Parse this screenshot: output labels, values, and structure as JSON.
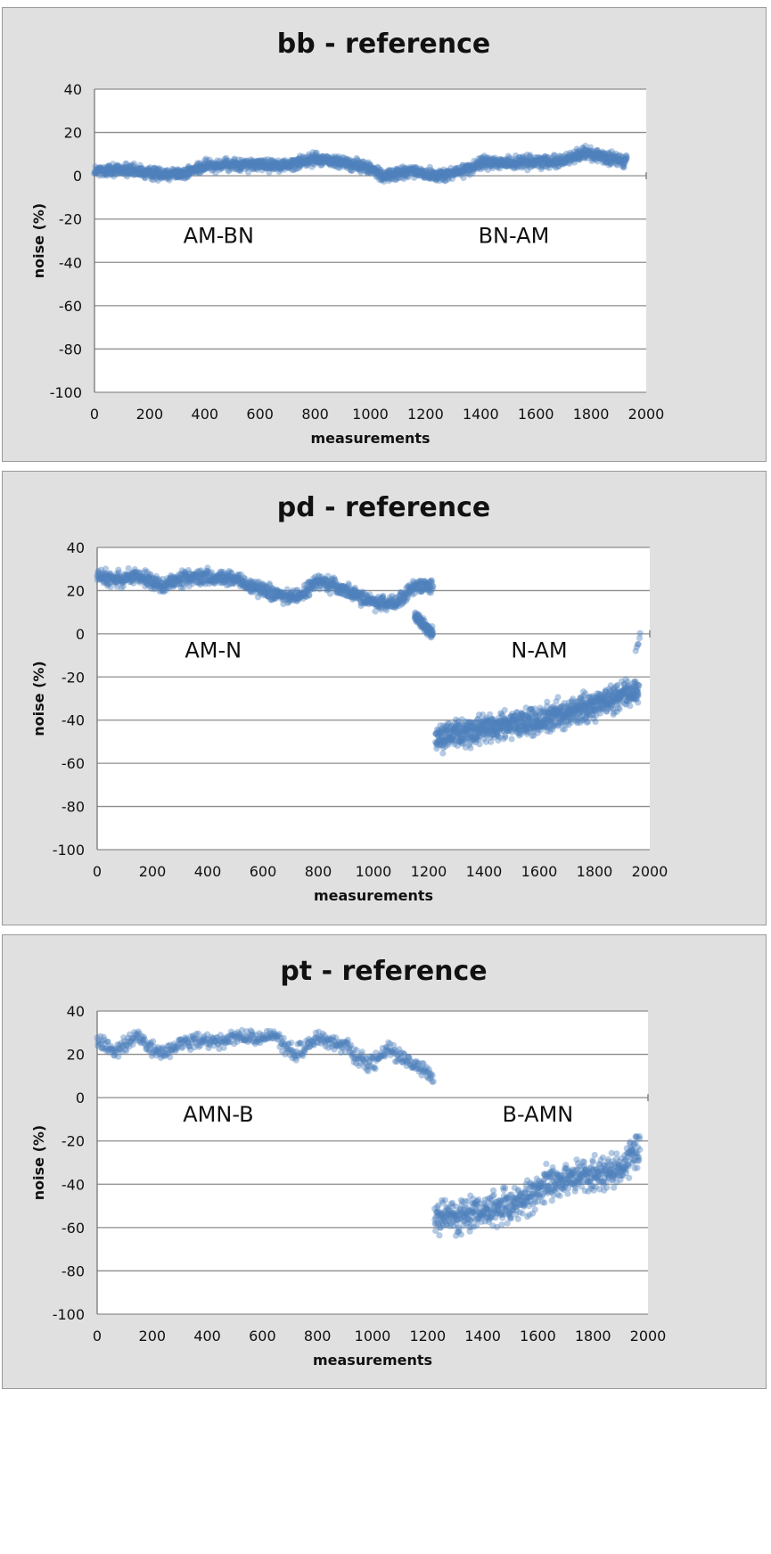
{
  "chart_data": [
    {
      "type": "scatter",
      "title": "bb - reference",
      "xlabel": "measurements",
      "ylabel": "noise (%)",
      "xlim": [
        0,
        2000
      ],
      "ylim": [
        -100,
        40
      ],
      "xticks": [
        0,
        200,
        400,
        600,
        800,
        1000,
        1200,
        1400,
        1600,
        1800,
        2000
      ],
      "yticks": [
        40,
        20,
        0,
        -20,
        -40,
        -60,
        -80,
        -100
      ],
      "grid": true,
      "annotations": [
        {
          "text": "AM-BN",
          "x": 450,
          "y": -31
        },
        {
          "text": "BN-AM",
          "x": 1520,
          "y": -31
        }
      ],
      "series": [
        {
          "color": "#4f81bd",
          "segments": [
            {
              "x_start": 0,
              "x_end": 1930,
              "count": 1930,
              "trend": [
                [
                  0,
                  2
                ],
                [
                  100,
                  3
                ],
                [
                  200,
                  1
                ],
                [
                  320,
                  1
                ],
                [
                  420,
                  5
                ],
                [
                  550,
                  5
                ],
                [
                  700,
                  5
                ],
                [
                  800,
                  8
                ],
                [
                  900,
                  6
                ],
                [
                  980,
                  4
                ],
                [
                  1050,
                  0
                ],
                [
                  1150,
                  2
                ],
                [
                  1250,
                  0
                ],
                [
                  1330,
                  2
                ],
                [
                  1400,
                  6
                ],
                [
                  1550,
                  6
                ],
                [
                  1700,
                  7
                ],
                [
                  1780,
                  11
                ],
                [
                  1850,
                  8
                ],
                [
                  1930,
                  7
                ]
              ],
              "spread": 4
            }
          ]
        }
      ]
    },
    {
      "type": "scatter",
      "title": "pd - reference",
      "xlabel": "measurements",
      "ylabel": "noise (%)",
      "xlim": [
        0,
        2000
      ],
      "ylim": [
        -100,
        40
      ],
      "xticks": [
        0,
        200,
        400,
        600,
        800,
        1000,
        1200,
        1400,
        1600,
        1800,
        2000
      ],
      "yticks": [
        40,
        20,
        0,
        -20,
        -40,
        -60,
        -80,
        -100
      ],
      "grid": true,
      "annotations": [
        {
          "text": "AM-N",
          "x": 420,
          "y": -11
        },
        {
          "text": "N-AM",
          "x": 1600,
          "y": -11
        }
      ],
      "series": [
        {
          "color": "#4f81bd",
          "segments": [
            {
              "x_start": 0,
              "x_end": 1215,
              "count": 1100,
              "trend": [
                [
                  0,
                  27
                ],
                [
                  60,
                  25
                ],
                [
                  150,
                  27
                ],
                [
                  230,
                  22
                ],
                [
                  300,
                  25
                ],
                [
                  380,
                  26
                ],
                [
                  480,
                  26
                ],
                [
                  600,
                  20
                ],
                [
                  720,
                  16
                ],
                [
                  800,
                  25
                ],
                [
                  900,
                  20
                ],
                [
                  1000,
                  15
                ],
                [
                  1080,
                  14
                ],
                [
                  1150,
                  22
                ],
                [
                  1215,
                  22
                ]
              ],
              "spread": 5
            },
            {
              "x_start": 1150,
              "x_end": 1215,
              "count": 110,
              "trend": [
                [
                  1150,
                  8
                ],
                [
                  1215,
                  0
                ]
              ],
              "spread": 4
            },
            {
              "x_start": 1225,
              "x_end": 1960,
              "count": 1000,
              "trend": [
                [
                  1225,
                  -48
                ],
                [
                  1400,
                  -44
                ],
                [
                  1600,
                  -40
                ],
                [
                  1800,
                  -33
                ],
                [
                  1960,
                  -26
                ]
              ],
              "spread": 9
            },
            {
              "x_start": 1950,
              "x_end": 1965,
              "count": 6,
              "trend": [
                [
                  1950,
                  -8
                ],
                [
                  1965,
                  -1
                ]
              ],
              "spread": 3
            }
          ]
        }
      ]
    },
    {
      "type": "scatter",
      "title": "pt - reference",
      "xlabel": "measurements",
      "ylabel": "noise (%)",
      "xlim": [
        0,
        2000
      ],
      "ylim": [
        -100,
        40
      ],
      "xticks": [
        0,
        200,
        400,
        600,
        800,
        1000,
        1200,
        1400,
        1600,
        1800,
        2000
      ],
      "yticks": [
        40,
        20,
        0,
        -20,
        -40,
        -60,
        -80,
        -100
      ],
      "grid": true,
      "annotations": [
        {
          "text": "AMN-B",
          "x": 440,
          "y": -11
        },
        {
          "text": "B-AMN",
          "x": 1600,
          "y": -11
        }
      ],
      "series": [
        {
          "color": "#4f81bd",
          "segments": [
            {
              "x_start": 0,
              "x_end": 1220,
              "count": 560,
              "trend": [
                [
                  0,
                  27
                ],
                [
                  60,
                  22
                ],
                [
                  150,
                  28
                ],
                [
                  230,
                  20
                ],
                [
                  300,
                  25
                ],
                [
                  450,
                  26
                ],
                [
                  500,
                  28
                ],
                [
                  650,
                  28
                ],
                [
                  720,
                  20
                ],
                [
                  800,
                  27
                ],
                [
                  900,
                  24
                ],
                [
                  980,
                  15
                ],
                [
                  1060,
                  22
                ],
                [
                  1150,
                  16
                ],
                [
                  1220,
                  10
                ]
              ],
              "spread": 5
            },
            {
              "x_start": 1225,
              "x_end": 1970,
              "count": 700,
              "trend": [
                [
                  1225,
                  -56
                ],
                [
                  1400,
                  -53
                ],
                [
                  1550,
                  -48
                ],
                [
                  1650,
                  -38
                ],
                [
                  1800,
                  -36
                ],
                [
                  1900,
                  -33
                ],
                [
                  1970,
                  -22
                ]
              ],
              "spread": 11
            }
          ]
        }
      ]
    }
  ]
}
